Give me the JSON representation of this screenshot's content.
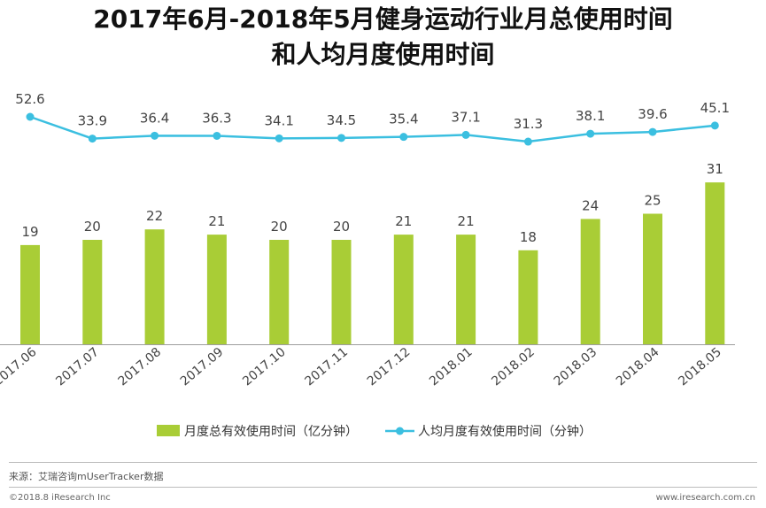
{
  "title_line1": "2017年6月-2018年5月健身运动行业月总使用时间",
  "title_line2": "和人均月度使用时间",
  "source": "来源：艾瑞咨询mUserTracker数据",
  "copyright": "©2018.8 iResearch Inc",
  "website": "www.iresearch.com.cn",
  "colors": {
    "bar": "#a9cd36",
    "line": "#3bbfe0",
    "axis": "#9e9e9e"
  },
  "chart_data": {
    "type": "bar+line",
    "categories": [
      "2017.06",
      "2017.07",
      "2017.08",
      "2017.09",
      "2017.10",
      "2017.11",
      "2017.12",
      "2018.01",
      "2018.02",
      "2018.03",
      "2018.04",
      "2018.05"
    ],
    "series": [
      {
        "name": "月度总有效使用时间（亿分钟）",
        "type": "bar",
        "values": [
          19,
          20,
          22,
          21,
          20,
          20,
          21,
          21,
          18,
          24,
          25,
          31
        ]
      },
      {
        "name": "人均月度有效使用时间（分钟）",
        "type": "line",
        "values": [
          52.6,
          33.9,
          36.4,
          36.3,
          34.1,
          34.5,
          35.4,
          37.1,
          31.3,
          38.1,
          39.6,
          45.1
        ]
      }
    ],
    "legend_position": "bottom-center"
  }
}
